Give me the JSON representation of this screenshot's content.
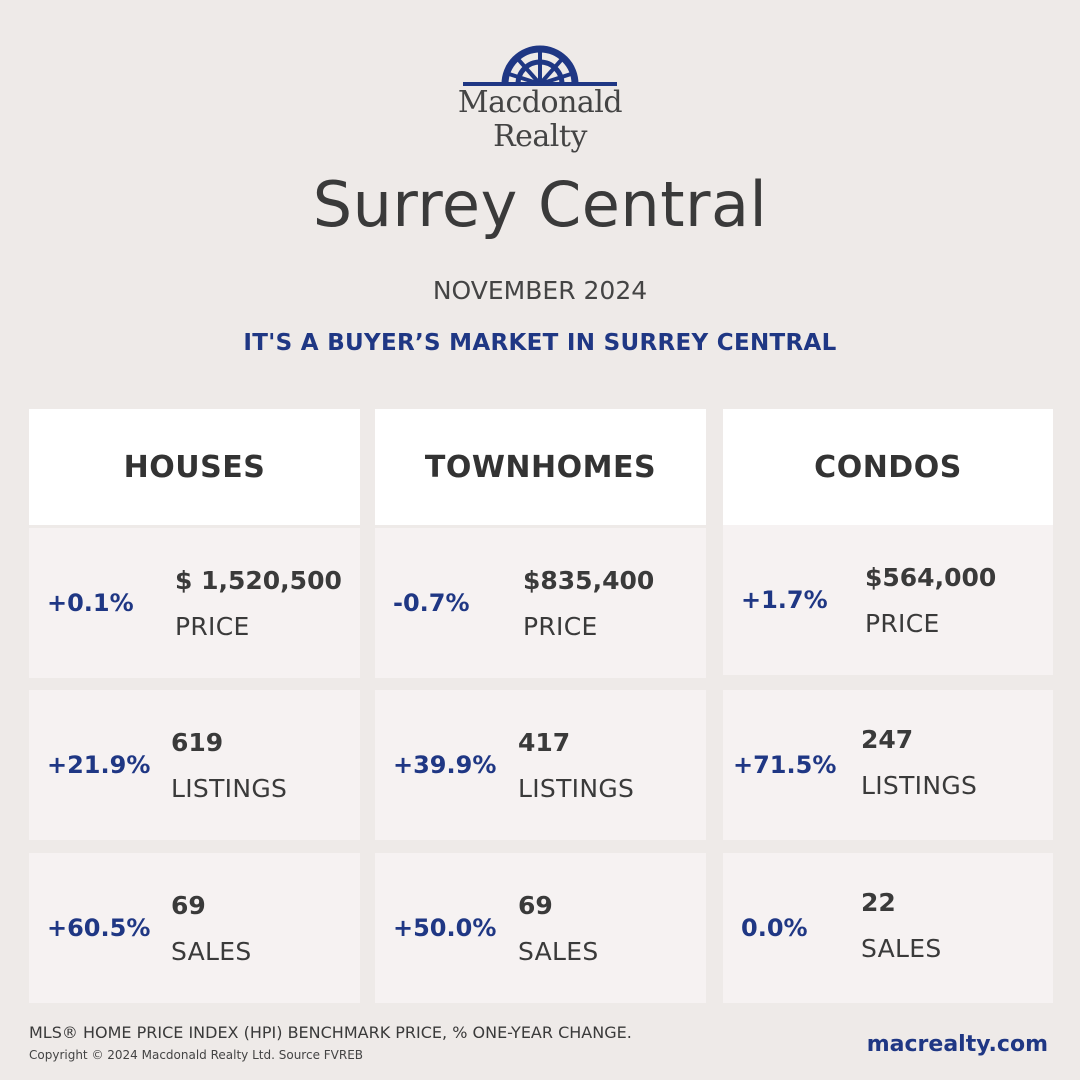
{
  "brand": {
    "name_line1": "Macdonald",
    "name_line2": "Realty",
    "color": "#1f3784",
    "icon": "sunburst-logo-icon"
  },
  "title": "Surrey Central",
  "month": "NOVEMBER 2024",
  "tagline": "IT'S A BUYER’S MARKET IN SURREY CENTRAL",
  "columns": [
    {
      "header": "HOUSES",
      "price": {
        "change": "+0.1%",
        "value": "$ 1,520,500",
        "label": "PRICE"
      },
      "listings": {
        "change": "+21.9%",
        "value": "619",
        "label": "LISTINGS"
      },
      "sales": {
        "change": "+60.5%",
        "value": "69",
        "label": "SALES"
      }
    },
    {
      "header": "TOWNHOMES",
      "price": {
        "change": "-0.7%",
        "value": "$835,400",
        "label": "PRICE"
      },
      "listings": {
        "change": "+39.9%",
        "value": "417",
        "label": "LISTINGS"
      },
      "sales": {
        "change": "+50.0%",
        "value": "69",
        "label": "SALES"
      }
    },
    {
      "header": "CONDOS",
      "price": {
        "change": "+1.7%",
        "value": "$564,000",
        "label": "PRICE"
      },
      "listings": {
        "change": "+71.5%",
        "value": "247",
        "label": "LISTINGS"
      },
      "sales": {
        "change": "0.0%",
        "value": "22",
        "label": "SALES"
      }
    }
  ],
  "footer": {
    "note": "MLS® HOME PRICE INDEX (HPI) BENCHMARK PRICE, % ONE-YEAR CHANGE.",
    "copyright": "Copyright © 2024 Macdonald Realty Ltd. Source FVREB",
    "website": "macrealty.com"
  },
  "colors": {
    "background": "#eeeae8",
    "accent": "#1f3784",
    "header_bg": "#ffffff",
    "cell_bg": "#f6f2f2"
  }
}
